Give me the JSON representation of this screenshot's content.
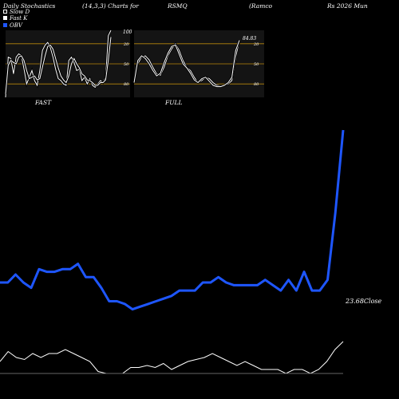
{
  "header": {
    "title_parts": [
      "Daily Stochastics",
      "(14,3,3) Charts for",
      "RSMQ",
      "(Ramco",
      "Rs 2026  Mun"
    ]
  },
  "legend": [
    {
      "label": "Slow  D",
      "color": "#ffffff"
    },
    {
      "label": "Fast K",
      "color": "#ffffff"
    },
    {
      "label": "OBV",
      "color": "#1e56ff"
    }
  ],
  "chart_data": [
    {
      "type": "line",
      "label": "FAST",
      "ylim": [
        0,
        100
      ],
      "gridlines": [
        20,
        50,
        80
      ],
      "tick_labels": [
        "80",
        "50",
        "20"
      ],
      "value_label": "100",
      "series": [
        {
          "name": "Fast K",
          "values": [
            0,
            60,
            58,
            35,
            60,
            65,
            62,
            42,
            20,
            30,
            40,
            25,
            18,
            40,
            70,
            78,
            82,
            74,
            60,
            42,
            28,
            25,
            20,
            18,
            55,
            60,
            52,
            40,
            42,
            25,
            30,
            20,
            28,
            18,
            15,
            20,
            25,
            22,
            30,
            92,
            100
          ]
        },
        {
          "name": "Slow D",
          "values": [
            5,
            48,
            55,
            52,
            50,
            60,
            62,
            55,
            40,
            28,
            30,
            32,
            26,
            28,
            45,
            62,
            76,
            78,
            72,
            58,
            44,
            32,
            26,
            22,
            32,
            50,
            58,
            50,
            44,
            35,
            32,
            26,
            25,
            22,
            18,
            18,
            22,
            22,
            26,
            55,
            90
          ]
        }
      ]
    },
    {
      "type": "line",
      "label": "FULL",
      "ylim": [
        0,
        100
      ],
      "gridlines": [
        20,
        50,
        80
      ],
      "tick_labels": [
        "80",
        "50",
        "20"
      ],
      "value_label": "84.83",
      "series": [
        {
          "name": "Slow D",
          "values": [
            25,
            50,
            60,
            62,
            56,
            45,
            35,
            33,
            45,
            62,
            72,
            80,
            70,
            55,
            45,
            40,
            30,
            22,
            25,
            30,
            28,
            22,
            18,
            17,
            18,
            20,
            25,
            60,
            84.83
          ]
        },
        {
          "name": "Fast K",
          "values": [
            22,
            55,
            62,
            58,
            50,
            40,
            32,
            36,
            52,
            66,
            76,
            78,
            64,
            50,
            44,
            36,
            26,
            22,
            28,
            30,
            24,
            18,
            16,
            16,
            18,
            22,
            30,
            70,
            85
          ]
        }
      ]
    },
    {
      "type": "line",
      "label": "OBV",
      "value_label": "23.68Close",
      "series": [
        {
          "name": "OBV",
          "values": [
            34,
            34,
            37,
            34,
            32,
            39,
            38,
            38,
            39,
            39,
            41,
            36,
            36,
            32,
            27,
            27,
            26,
            24,
            25,
            26,
            27,
            28,
            29,
            31,
            31,
            31,
            34,
            34,
            36,
            34,
            33,
            33,
            33,
            33,
            35,
            33,
            31,
            35,
            31,
            38,
            31,
            31,
            35,
            60,
            91
          ]
        },
        {
          "name": "Close",
          "values": [
            6,
            11,
            8,
            7,
            10,
            8,
            10,
            10,
            12,
            10,
            8,
            6,
            1,
            0,
            0,
            0,
            3,
            3,
            4,
            3,
            5,
            2,
            4,
            6,
            7,
            8,
            10,
            8,
            6,
            4,
            6,
            4,
            2,
            2,
            2,
            0,
            2,
            2,
            0,
            2,
            6,
            12,
            16
          ]
        }
      ]
    }
  ]
}
